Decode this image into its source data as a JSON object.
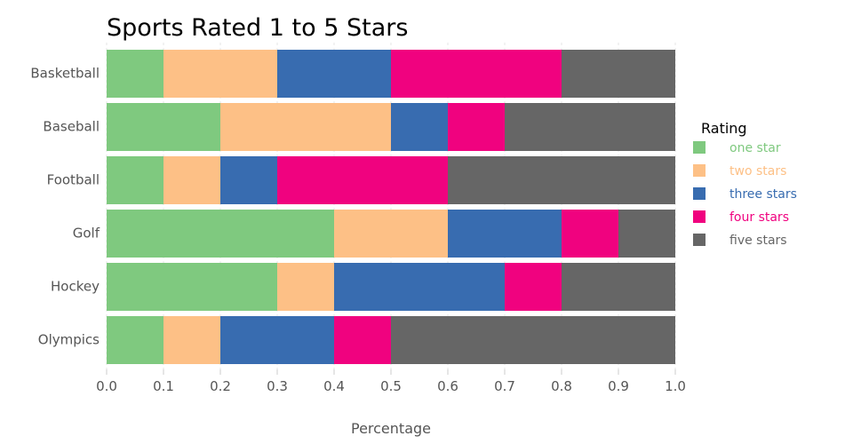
{
  "chart_data": {
    "type": "bar",
    "orientation": "horizontal",
    "stacked": true,
    "title": "Sports Rated 1 to 5 Stars",
    "xlabel": "Percentage",
    "ylabel": "",
    "xlim": [
      0,
      1
    ],
    "xticks": [
      "0.0",
      "0.1",
      "0.2",
      "0.3",
      "0.4",
      "0.5",
      "0.6",
      "0.7",
      "0.8",
      "0.9",
      "1.0"
    ],
    "categories": [
      "Basketball",
      "Baseball",
      "Football",
      "Golf",
      "Hockey",
      "Olympics"
    ],
    "legend": {
      "title": "Rating",
      "position": "right"
    },
    "series": [
      {
        "name": "one star",
        "color": "#7fc97f",
        "values": [
          0.1,
          0.2,
          0.1,
          0.4,
          0.3,
          0.1
        ]
      },
      {
        "name": "two stars",
        "color": "#fdc086",
        "values": [
          0.2,
          0.3,
          0.1,
          0.2,
          0.1,
          0.1
        ]
      },
      {
        "name": "three stars",
        "color": "#386cb0",
        "values": [
          0.2,
          0.1,
          0.1,
          0.2,
          0.3,
          0.2
        ]
      },
      {
        "name": "four stars",
        "color": "#f0027f",
        "values": [
          0.3,
          0.1,
          0.3,
          0.1,
          0.1,
          0.1
        ]
      },
      {
        "name": "five stars",
        "color": "#666666",
        "values": [
          0.2,
          0.3,
          0.4,
          0.1,
          0.2,
          0.5
        ]
      }
    ],
    "grid": true
  }
}
